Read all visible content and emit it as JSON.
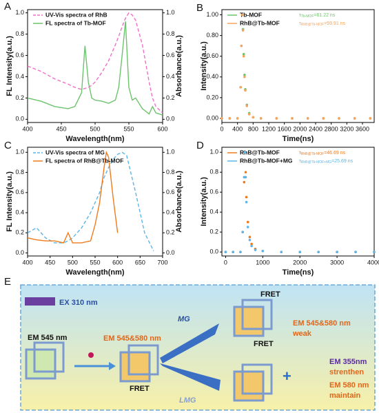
{
  "panel_labels": [
    "A",
    "B",
    "C",
    "D",
    "E"
  ],
  "chart_data": [
    {
      "type": "line",
      "xlabel": "Wavelength(nm)",
      "ylabel": "FL Intensity(a.u.)",
      "y2label": "Absorbance(a.u.)",
      "x": [
        400,
        420,
        440,
        460,
        470,
        480,
        485,
        490,
        495,
        500,
        510,
        520,
        530,
        535,
        540,
        545,
        550,
        555,
        560,
        570,
        580,
        585,
        590,
        600
      ],
      "series": [
        {
          "name": "UV-Vis spectra of RhB",
          "color": "#f06fc8",
          "style": "dashed",
          "axis": "y2",
          "values": [
            0.5,
            0.45,
            0.38,
            0.33,
            0.3,
            0.28,
            0.29,
            0.3,
            0.32,
            0.35,
            0.44,
            0.55,
            0.7,
            0.78,
            0.87,
            0.95,
            1.0,
            0.98,
            0.93,
            0.7,
            0.35,
            0.2,
            0.12,
            0.06
          ]
        },
        {
          "name": "FL spectra of Tb-MOF",
          "color": "#6cc36c",
          "style": "solid",
          "values": [
            0.2,
            0.17,
            0.12,
            0.1,
            0.12,
            0.25,
            0.69,
            0.35,
            0.2,
            0.18,
            0.17,
            0.15,
            0.18,
            0.3,
            0.6,
            0.92,
            0.3,
            0.18,
            0.2,
            0.1,
            0.05,
            0.12,
            0.06,
            0.04
          ]
        }
      ],
      "xlim": [
        400,
        600
      ],
      "xticks": [
        400,
        450,
        500,
        550,
        600
      ],
      "ylim": [
        -0.03,
        1.03
      ],
      "yticks": [
        {
          "value": 0,
          "label": "0.0"
        },
        {
          "value": 0.2,
          "label": "0.2"
        },
        {
          "value": 0.4,
          "label": "0.4"
        },
        {
          "value": 0.6,
          "label": "0.6"
        },
        {
          "value": 0.8,
          "label": "0.8"
        },
        {
          "value": 1,
          "label": "1.0"
        }
      ],
      "y2lim": [
        -0.03,
        1.03
      ],
      "y2ticks": [
        {
          "value": 0,
          "label": "0.0"
        },
        {
          "value": 0.2,
          "label": "0.2"
        },
        {
          "value": 0.4,
          "label": "0.4"
        },
        {
          "value": 0.6,
          "label": "0.6"
        },
        {
          "value": 0.8,
          "label": "0.8"
        },
        {
          "value": 1,
          "label": "1.0"
        }
      ]
    },
    {
      "type": "scatter",
      "xlabel": "Time(ns)",
      "ylabel": "Intensity(a.u.)",
      "x": [
        0,
        200,
        400,
        480,
        500,
        520,
        540,
        560,
        580,
        600,
        640,
        700,
        800,
        1000,
        1400,
        1800,
        2200,
        2600,
        3000,
        3400,
        3800
      ],
      "series": [
        {
          "name": "Tb-MOF",
          "color": "#6cc36c",
          "values": [
            0,
            0,
            0,
            0.3,
            0.7,
            1.0,
            0.86,
            0.62,
            0.42,
            0.28,
            0.13,
            0.05,
            0.01,
            0,
            0,
            0,
            0,
            0,
            0,
            0,
            0
          ]
        },
        {
          "name": "RhB@Tb-MOF",
          "color": "#f7a35c",
          "values": [
            0,
            0,
            0,
            0.3,
            0.7,
            1.0,
            0.85,
            0.6,
            0.4,
            0.27,
            0.12,
            0.04,
            0.01,
            0,
            0,
            0,
            0,
            0,
            0,
            0,
            0
          ]
        }
      ],
      "annotations": [
        {
          "symbol": "τ",
          "subscript": "Tb-MOF",
          "text": "=61.22 ns"
        },
        {
          "symbol": "τ",
          "subscript": "RhB@Tb-MOF",
          "text": "=59.91 ns"
        }
      ],
      "xlim": [
        0,
        3900
      ],
      "xticks": [
        0,
        400,
        800,
        1200,
        1600,
        2000,
        2400,
        2800,
        3200,
        3600
      ],
      "ylim": [
        -0.04,
        1.05
      ],
      "yticks": [
        {
          "value": 0,
          "label": "0.00"
        },
        {
          "value": 0.2,
          "label": "0.20"
        },
        {
          "value": 0.4,
          "label": "0.40"
        },
        {
          "value": 0.6,
          "label": "0.60"
        },
        {
          "value": 0.8,
          "label": "0.80"
        },
        {
          "value": 1,
          "label": "1.00"
        }
      ]
    },
    {
      "type": "line",
      "xlabel": "Wavelength(nm)",
      "ylabel": "FL Intensity(a.u.)",
      "y2label": "Absorbance(a.u.)",
      "x": [
        400,
        420,
        440,
        460,
        480,
        490,
        500,
        520,
        540,
        550,
        560,
        570,
        575,
        580,
        590,
        600,
        610,
        620,
        640,
        660,
        680
      ],
      "series": [
        {
          "name": "UV-Vis spectra of MG",
          "color": "#5bb5e8",
          "style": "dashed",
          "axis": "y2",
          "values": [
            0.2,
            0.25,
            0.15,
            0.1,
            0.1,
            0.12,
            0.15,
            0.25,
            0.4,
            0.5,
            0.6,
            0.75,
            0.8,
            0.85,
            0.93,
            0.98,
            1.0,
            0.97,
            0.6,
            0.2,
            0.02
          ]
        },
        {
          "name": "FL spectra of RhB@Tb-MOF",
          "color": "#f07a1a",
          "style": "solid",
          "values": [
            0.15,
            0.13,
            0.12,
            0.12,
            0.1,
            0.2,
            0.1,
            0.1,
            0.12,
            0.28,
            0.5,
            0.85,
            1.0,
            0.95,
            0.55,
            0.2,
            null,
            null,
            null,
            null,
            null
          ]
        }
      ],
      "xlim": [
        400,
        700
      ],
      "xticks": [
        400,
        450,
        500,
        550,
        600,
        650,
        700
      ],
      "ylim": [
        -0.03,
        1.05
      ],
      "yticks": [
        {
          "value": 0,
          "label": "0.0"
        },
        {
          "value": 0.2,
          "label": "0.2"
        },
        {
          "value": 0.4,
          "label": "0.4"
        },
        {
          "value": 0.6,
          "label": "0.6"
        },
        {
          "value": 0.8,
          "label": "0.8"
        },
        {
          "value": 1,
          "label": "1.0"
        }
      ],
      "y2lim": [
        -0.03,
        1.05
      ],
      "y2ticks": [
        {
          "value": 0,
          "label": "0.0"
        },
        {
          "value": 0.2,
          "label": "0.2"
        },
        {
          "value": 0.4,
          "label": "0.4"
        },
        {
          "value": 0.6,
          "label": "0.6"
        },
        {
          "value": 0.8,
          "label": "0.8"
        },
        {
          "value": 1,
          "label": "1.0"
        }
      ]
    },
    {
      "type": "scatter",
      "xlabel": "Time(ns)",
      "ylabel": "Intensity(a.u.)",
      "x": [
        0,
        200,
        400,
        460,
        500,
        520,
        540,
        560,
        600,
        650,
        700,
        800,
        1000,
        1500,
        2000,
        2500,
        3000,
        3500,
        4000
      ],
      "series": [
        {
          "name": "RhB@Tb-MOF",
          "color": "#f07a1a",
          "values": [
            0,
            0,
            0,
            0.2,
            0.7,
            1.0,
            0.8,
            0.55,
            0.3,
            0.15,
            0.08,
            0.03,
            0.01,
            0,
            0,
            0,
            0,
            0,
            0
          ]
        },
        {
          "name": "RhB@Tb-MOF+MG",
          "color": "#5bb5e8",
          "values": [
            0,
            0,
            0,
            0.2,
            0.75,
            1.0,
            0.75,
            0.5,
            0.25,
            0.12,
            0.06,
            0.02,
            0.01,
            0,
            0,
            0,
            0,
            0,
            0
          ]
        }
      ],
      "annotations": [
        {
          "symbol": "τ",
          "subscript": "RhB@Tb-MOF",
          "text": "=46.69 ns"
        },
        {
          "symbol": "τ",
          "subscript": "RhB@Tb-MOF+MG",
          "text": "=25.69 ns"
        }
      ],
      "xlim": [
        -100,
        4000
      ],
      "xticks": [
        0,
        1000,
        2000,
        3000,
        4000
      ],
      "ylim": [
        -0.04,
        1.05
      ],
      "yticks": [
        {
          "value": 0,
          "label": "0.0"
        },
        {
          "value": 0.2,
          "label": "0.2"
        },
        {
          "value": 0.4,
          "label": "0.4"
        },
        {
          "value": 0.6,
          "label": "0.6"
        },
        {
          "value": 0.8,
          "label": "0.8"
        },
        {
          "value": 1,
          "label": "1.0"
        }
      ]
    }
  ],
  "diagram": {
    "ex": "EX 310 nm",
    "em1": "EM 545 nm",
    "em2": "EM 545&580 nm",
    "mg": "MG",
    "lmg": "LMG",
    "fret": [
      "FRET",
      "FRET",
      "FRET"
    ],
    "result_top": [
      "EM 545&580 nm",
      "weak"
    ],
    "plus": "+",
    "result_bottom": [
      "EM 355nm",
      "strenthen",
      "EM 580 nm",
      "maintain"
    ]
  }
}
